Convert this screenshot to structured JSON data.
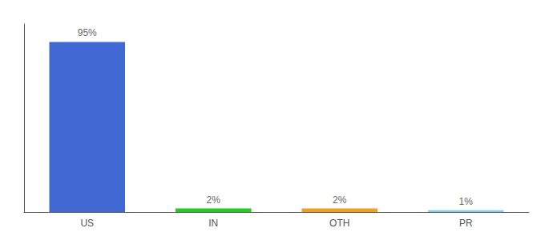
{
  "chart_data": {
    "type": "bar",
    "categories": [
      "US",
      "IN",
      "OTH",
      "PR"
    ],
    "values": [
      95,
      2,
      2,
      1
    ],
    "value_labels": [
      "95%",
      "2%",
      "2%",
      "1%"
    ],
    "colors": [
      "#4169d4",
      "#22cc22",
      "#f0a020",
      "#80d0f0"
    ],
    "ylim": [
      0,
      105
    ],
    "data_labels": true,
    "tick_labels": "x",
    "grid": false
  }
}
